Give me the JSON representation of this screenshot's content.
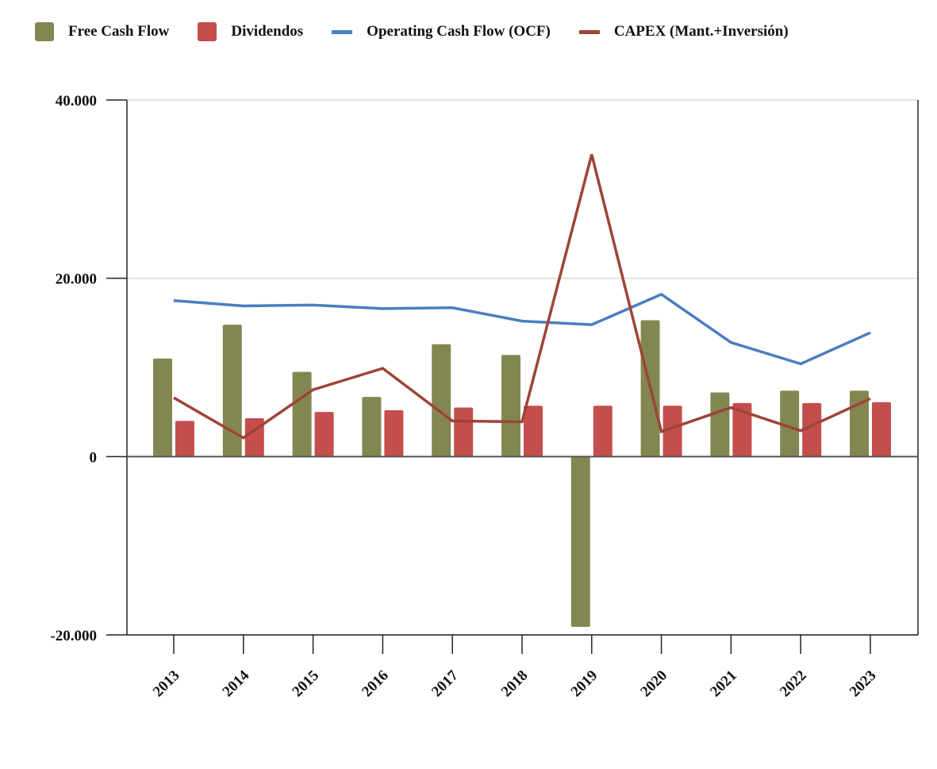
{
  "chart_data": {
    "type": "bar",
    "categories": [
      "2013",
      "2014",
      "2015",
      "2016",
      "2017",
      "2018",
      "2019",
      "2020",
      "2021",
      "2022",
      "2023"
    ],
    "ylim": [
      -20000,
      40000
    ],
    "yticks": [
      40000,
      20000,
      0,
      -20000
    ],
    "ytick_labels": [
      "40.000",
      "20.000",
      "0",
      "-20.000"
    ],
    "grid": true,
    "legend_position": "top",
    "series": [
      {
        "name": "Free Cash Flow",
        "kind": "bar",
        "color": "#828752",
        "values": [
          11000,
          14800,
          9500,
          6700,
          12600,
          11400,
          -19100,
          15300,
          7200,
          7400,
          7400
        ]
      },
      {
        "name": "Dividendos",
        "kind": "bar",
        "color": "#c44e4c",
        "values": [
          4000,
          4300,
          5000,
          5200,
          5500,
          5700,
          5700,
          5700,
          6000,
          6000,
          6100
        ]
      },
      {
        "name": "Operating Cash Flow (OCF)",
        "kind": "line",
        "color": "#4a7ebf",
        "values": [
          17500,
          16900,
          17000,
          16600,
          16700,
          15200,
          14800,
          18200,
          12800,
          10400,
          13900
        ]
      },
      {
        "name": "CAPEX (Mant.+Inversión)",
        "kind": "line",
        "color": "#9e4437",
        "values": [
          6600,
          2100,
          7500,
          9900,
          4000,
          3900,
          33900,
          2800,
          5500,
          2900,
          6500
        ]
      }
    ]
  }
}
